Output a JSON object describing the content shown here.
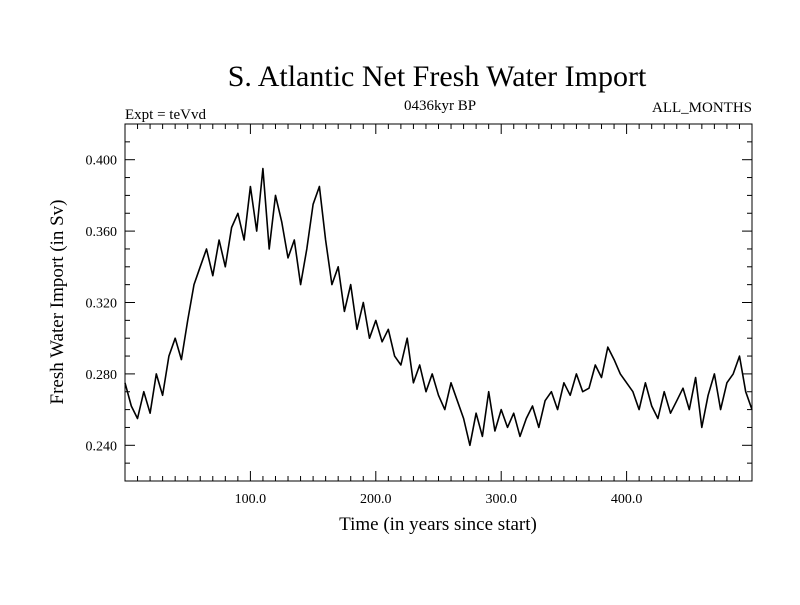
{
  "chart_data": {
    "type": "line",
    "title": "S. Atlantic Net Fresh Water Import",
    "subtitle_left": "Expt = teVvd",
    "subtitle_center": "0436kyr BP",
    "subtitle_right": "ALL_MONTHS",
    "xlabel": "Time (in years since start)",
    "ylabel": "Fresh Water Import (in Sv)",
    "xlim": [
      0,
      500
    ],
    "ylim": [
      0.22,
      0.42
    ],
    "x_ticks": [
      100,
      200,
      300,
      400
    ],
    "x_tick_labels": [
      "100.0",
      "200.0",
      "300.0",
      "400.0"
    ],
    "y_ticks": [
      0.24,
      0.28,
      0.32,
      0.36,
      0.4
    ],
    "y_tick_labels": [
      "0.240",
      "0.280",
      "0.320",
      "0.360",
      "0.400"
    ],
    "grid": false,
    "series": [
      {
        "name": "fresh_water_import",
        "color": "#000000",
        "x": [
          0,
          5,
          10,
          15,
          20,
          25,
          30,
          35,
          40,
          45,
          50,
          55,
          60,
          65,
          70,
          75,
          80,
          85,
          90,
          95,
          100,
          105,
          110,
          115,
          120,
          125,
          130,
          135,
          140,
          145,
          150,
          155,
          160,
          165,
          170,
          175,
          180,
          185,
          190,
          195,
          200,
          205,
          210,
          215,
          220,
          225,
          230,
          235,
          240,
          245,
          250,
          255,
          260,
          265,
          270,
          275,
          280,
          285,
          290,
          295,
          300,
          305,
          310,
          315,
          320,
          325,
          330,
          335,
          340,
          345,
          350,
          355,
          360,
          365,
          370,
          375,
          380,
          385,
          390,
          395,
          400,
          405,
          410,
          415,
          420,
          425,
          430,
          435,
          440,
          445,
          450,
          455,
          460,
          465,
          470,
          475,
          480,
          485,
          490,
          495,
          500
        ],
        "y": [
          0.275,
          0.262,
          0.255,
          0.27,
          0.258,
          0.28,
          0.268,
          0.29,
          0.3,
          0.288,
          0.31,
          0.33,
          0.34,
          0.35,
          0.335,
          0.355,
          0.34,
          0.362,
          0.37,
          0.355,
          0.385,
          0.36,
          0.395,
          0.35,
          0.38,
          0.365,
          0.345,
          0.355,
          0.33,
          0.35,
          0.375,
          0.385,
          0.355,
          0.33,
          0.34,
          0.315,
          0.33,
          0.305,
          0.32,
          0.3,
          0.31,
          0.298,
          0.305,
          0.29,
          0.285,
          0.3,
          0.275,
          0.285,
          0.27,
          0.28,
          0.268,
          0.26,
          0.275,
          0.265,
          0.255,
          0.24,
          0.258,
          0.245,
          0.27,
          0.248,
          0.26,
          0.25,
          0.258,
          0.245,
          0.255,
          0.262,
          0.25,
          0.265,
          0.27,
          0.26,
          0.275,
          0.268,
          0.28,
          0.27,
          0.272,
          0.285,
          0.278,
          0.295,
          0.288,
          0.28,
          0.275,
          0.27,
          0.26,
          0.275,
          0.262,
          0.255,
          0.27,
          0.258,
          0.265,
          0.272,
          0.26,
          0.278,
          0.25,
          0.268,
          0.28,
          0.26,
          0.275,
          0.28,
          0.29,
          0.27,
          0.26
        ]
      }
    ]
  }
}
